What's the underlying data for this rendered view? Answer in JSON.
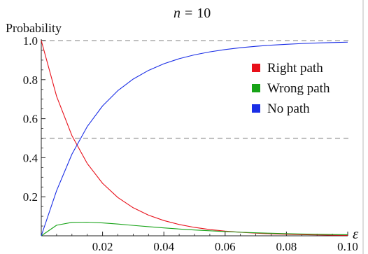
{
  "chart_data": {
    "type": "line",
    "title_prefix": "n",
    "title_equals": "=",
    "title_value": "10",
    "ylabel": "Probability",
    "xlabel": "ε",
    "xlim": [
      0,
      0.1
    ],
    "ylim": [
      0,
      1.0
    ],
    "x_ticks": [
      0.02,
      0.04,
      0.06,
      0.08,
      0.1
    ],
    "x_tick_labels": [
      "0.02",
      "0.04",
      "0.06",
      "0.08",
      "0.10"
    ],
    "y_ticks": [
      0.2,
      0.4,
      0.6,
      0.8,
      1.0
    ],
    "y_tick_labels": [
      "0.2",
      "0.4",
      "0.6",
      "0.8",
      "1.0"
    ],
    "reference_lines": [
      1.0,
      0.5
    ],
    "legend_position": "right",
    "x": [
      0,
      0.005,
      0.01,
      0.015,
      0.02,
      0.025,
      0.03,
      0.035,
      0.04,
      0.045,
      0.05,
      0.055,
      0.06,
      0.065,
      0.07,
      0.075,
      0.08,
      0.085,
      0.09,
      0.095,
      0.1
    ],
    "series": [
      {
        "name": "Right path",
        "color": "#e8101a",
        "values": [
          1.0,
          0.7144,
          0.5131,
          0.3704,
          0.2688,
          0.1961,
          0.1437,
          0.1058,
          0.0782,
          0.058,
          0.0431,
          0.0322,
          0.0241,
          0.0181,
          0.0136,
          0.0103,
          0.0078,
          0.0059,
          0.0045,
          0.0034,
          0.0026
        ]
      },
      {
        "name": "Wrong path",
        "color": "#17a317",
        "values": [
          0.0,
          0.0542,
          0.0688,
          0.0699,
          0.0659,
          0.0601,
          0.0533,
          0.0468,
          0.0406,
          0.0348,
          0.0299,
          0.0256,
          0.0217,
          0.0184,
          0.0156,
          0.0131,
          0.0111,
          0.0093,
          0.0078,
          0.0066,
          0.0055
        ]
      },
      {
        "name": "No path",
        "color": "#1a2ee6",
        "values": [
          0.0,
          0.2314,
          0.4181,
          0.5597,
          0.6653,
          0.7438,
          0.803,
          0.8474,
          0.8812,
          0.9072,
          0.927,
          0.9422,
          0.9542,
          0.9635,
          0.9708,
          0.9766,
          0.9811,
          0.9848,
          0.9877,
          0.99,
          0.9919
        ]
      }
    ]
  }
}
